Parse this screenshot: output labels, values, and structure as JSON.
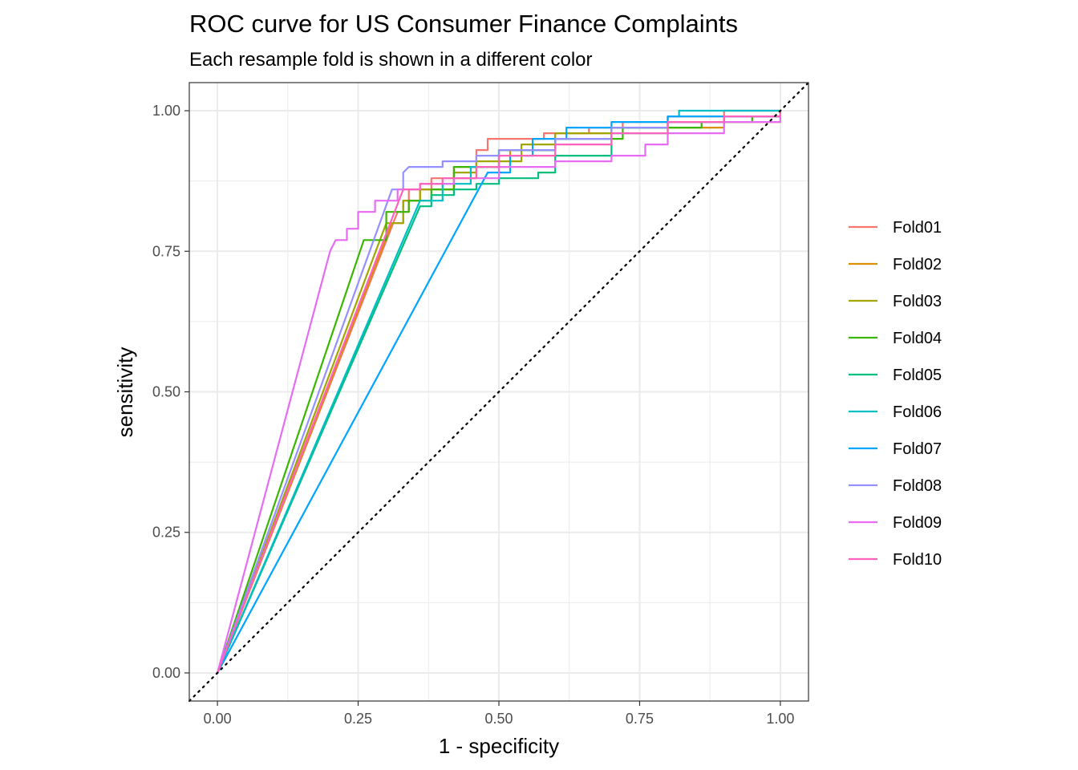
{
  "chart_data": {
    "type": "line",
    "title": "ROC curve for US Consumer Finance Complaints",
    "subtitle": "Each resample fold is shown in a different color",
    "xlabel": "1 - specificity",
    "ylabel": "sensitivity",
    "xlim": [
      -0.05,
      1.05
    ],
    "ylim": [
      -0.05,
      1.05
    ],
    "x_ticks": [
      "0.00",
      "0.25",
      "0.50",
      "0.75",
      "1.00"
    ],
    "y_ticks": [
      "0.00",
      "0.25",
      "0.50",
      "0.75",
      "1.00"
    ],
    "grid": true,
    "legend_position": "right",
    "reference_line": {
      "style": "dotted",
      "x": [
        0,
        1
      ],
      "y": [
        0,
        1
      ],
      "color": "#000000"
    },
    "series": [
      {
        "name": "Fold01",
        "color": "#F8766D",
        "x": [
          0,
          0.32,
          0.34,
          0.38,
          0.42,
          0.46,
          0.48,
          0.52,
          0.58,
          0.66,
          0.72,
          0.8,
          0.9,
          1.0
        ],
        "y": [
          0,
          0.82,
          0.86,
          0.88,
          0.9,
          0.93,
          0.95,
          0.95,
          0.96,
          0.97,
          0.98,
          0.99,
          1.0,
          1.0
        ]
      },
      {
        "name": "Fold02",
        "color": "#D89000",
        "x": [
          0,
          0.31,
          0.33,
          0.36,
          0.42,
          0.46,
          0.52,
          0.6,
          0.7,
          0.8,
          0.9,
          1.0
        ],
        "y": [
          0,
          0.8,
          0.84,
          0.86,
          0.88,
          0.9,
          0.93,
          0.96,
          0.97,
          0.97,
          0.98,
          1.0
        ]
      },
      {
        "name": "Fold03",
        "color": "#A3A500",
        "x": [
          0,
          0.3,
          0.33,
          0.36,
          0.42,
          0.46,
          0.54,
          0.6,
          0.7,
          0.8,
          0.9,
          1.0
        ],
        "y": [
          0,
          0.8,
          0.84,
          0.86,
          0.89,
          0.91,
          0.94,
          0.96,
          0.97,
          0.98,
          0.99,
          1.0
        ]
      },
      {
        "name": "Fold04",
        "color": "#39B600",
        "x": [
          0,
          0.26,
          0.3,
          0.34,
          0.38,
          0.42,
          0.5,
          0.6,
          0.72,
          0.86,
          0.95,
          1.0
        ],
        "y": [
          0,
          0.77,
          0.82,
          0.84,
          0.86,
          0.9,
          0.93,
          0.95,
          0.97,
          0.98,
          0.99,
          1.0
        ]
      },
      {
        "name": "Fold05",
        "color": "#00BF7D",
        "x": [
          0,
          0.36,
          0.38,
          0.42,
          0.46,
          0.5,
          0.57,
          0.6,
          0.7,
          0.8,
          0.9,
          1.0
        ],
        "y": [
          0,
          0.83,
          0.85,
          0.86,
          0.87,
          0.88,
          0.89,
          0.92,
          0.96,
          0.98,
          0.99,
          1.0
        ]
      },
      {
        "name": "Fold06",
        "color": "#00BFC4",
        "x": [
          0,
          0.36,
          0.4,
          0.45,
          0.5,
          0.6,
          0.7,
          0.8,
          0.82,
          0.9,
          1.0
        ],
        "y": [
          0,
          0.84,
          0.87,
          0.9,
          0.93,
          0.95,
          0.97,
          0.99,
          1.0,
          1.0,
          1.0
        ]
      },
      {
        "name": "Fold07",
        "color": "#00A5FF",
        "x": [
          0,
          0.48,
          0.52,
          0.56,
          0.62,
          0.7,
          0.8,
          0.9,
          1.0
        ],
        "y": [
          0,
          0.89,
          0.92,
          0.95,
          0.97,
          0.98,
          0.99,
          0.99,
          1.0
        ]
      },
      {
        "name": "Fold08",
        "color": "#9590FF",
        "x": [
          0,
          0.31,
          0.33,
          0.34,
          0.4,
          0.46,
          0.5,
          0.6,
          0.7,
          0.8,
          0.9,
          1.0
        ],
        "y": [
          0,
          0.86,
          0.89,
          0.9,
          0.91,
          0.92,
          0.93,
          0.95,
          0.97,
          0.98,
          0.99,
          1.0
        ]
      },
      {
        "name": "Fold09",
        "color": "#E76BF3",
        "x": [
          0,
          0.2,
          0.21,
          0.23,
          0.25,
          0.28,
          0.32,
          0.36,
          0.42,
          0.5,
          0.6,
          0.7,
          0.76,
          0.8,
          0.9,
          1.0
        ],
        "y": [
          0,
          0.75,
          0.77,
          0.79,
          0.82,
          0.84,
          0.86,
          0.87,
          0.88,
          0.9,
          0.91,
          0.92,
          0.94,
          0.96,
          0.98,
          1.0
        ]
      },
      {
        "name": "Fold10",
        "color": "#FF62BC",
        "x": [
          0,
          0.33,
          0.36,
          0.4,
          0.46,
          0.5,
          0.6,
          0.7,
          0.8,
          0.9,
          1.0
        ],
        "y": [
          0,
          0.86,
          0.87,
          0.88,
          0.9,
          0.92,
          0.94,
          0.96,
          0.98,
          0.99,
          1.0
        ]
      }
    ]
  }
}
